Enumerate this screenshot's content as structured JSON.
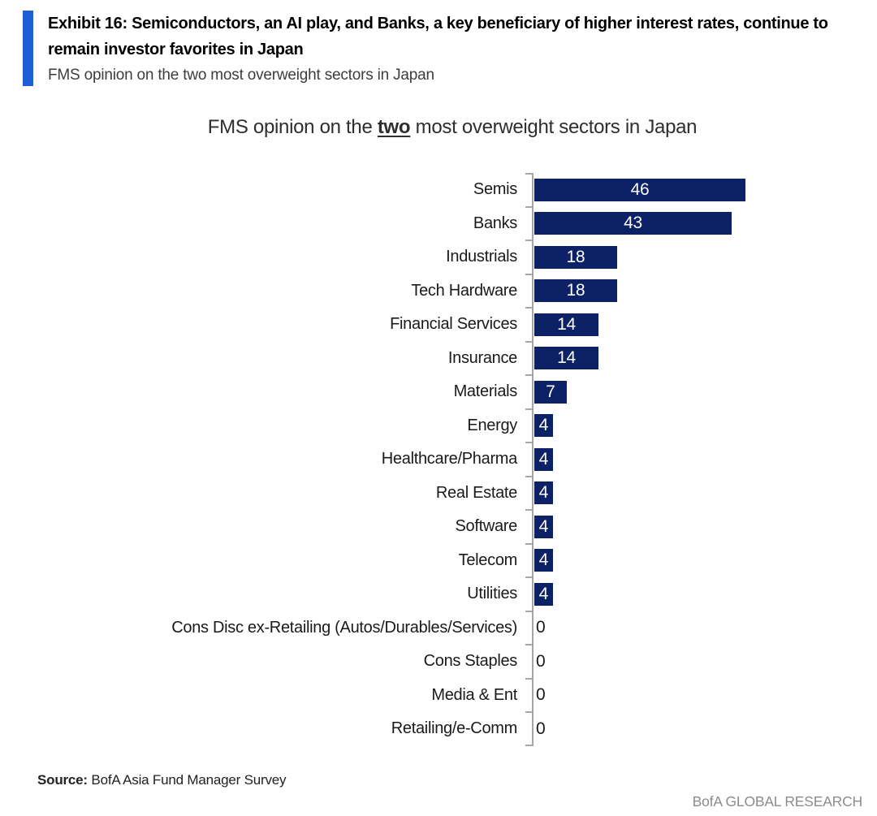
{
  "header": {
    "exhibit_title": "Exhibit 16: Semiconductors, an AI play, and Banks, a key beneficiary of higher interest rates, continue to remain investor favorites in Japan",
    "subtitle": "FMS opinion on the two most overweight sectors in Japan",
    "accent_color": "#1f5ed6"
  },
  "chart_data": {
    "type": "bar",
    "orientation": "horizontal",
    "title": "FMS opinion on the two most overweight sectors in Japan",
    "title_parts": {
      "pre": "FMS opinion on the ",
      "emphasis": "two",
      "post": " most overweight sectors in Japan"
    },
    "categories": [
      "Semis",
      "Banks",
      "Industrials",
      "Tech Hardware",
      "Financial Services",
      "Insurance",
      "Materials",
      "Energy",
      "Healthcare/Pharma",
      "Real Estate",
      "Software",
      "Telecom",
      "Utilities",
      "Cons Disc ex-Retailing (Autos/Durables/Services)",
      "Cons Staples",
      "Media & Ent",
      "Retailing/e-Comm"
    ],
    "values": [
      46,
      43,
      18,
      18,
      14,
      14,
      7,
      4,
      4,
      4,
      4,
      4,
      4,
      0,
      0,
      0,
      0
    ],
    "xlim": [
      0,
      48
    ],
    "grid": false,
    "legend": "none",
    "bar_color": "#0d2167",
    "value_label_color_inside": "#ffffff",
    "value_label_color_outside": "#1a1a1a",
    "axis_color": "#a6a6a6"
  },
  "footer": {
    "source_label": "Source:",
    "source_text": " BofA Asia Fund Manager Survey",
    "brand": "BofA GLOBAL RESEARCH"
  }
}
